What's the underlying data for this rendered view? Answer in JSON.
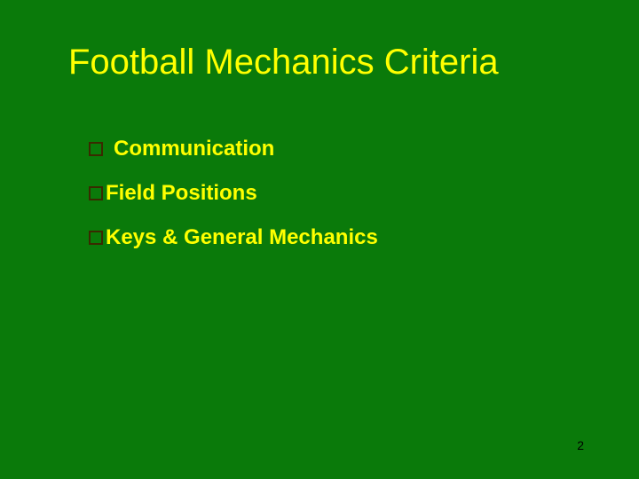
{
  "slide": {
    "title": "Football Mechanics Criteria",
    "bullets": [
      {
        "text": "Communication",
        "gap": "wide"
      },
      {
        "text": "Field Positions",
        "gap": "narrow"
      },
      {
        "text": "Keys & General Mechanics",
        "gap": "narrow"
      }
    ],
    "page_number": "2",
    "styling": {
      "background_color": "#0a7a0a",
      "title_color": "#ffff00",
      "title_fontsize": 40,
      "bullet_text_color": "#ffff00",
      "bullet_text_fontsize": 24,
      "bullet_marker_border_color": "#3a2a00",
      "bullet_marker_size": 16,
      "page_number_color": "#000000",
      "page_number_fontsize": 14
    }
  }
}
